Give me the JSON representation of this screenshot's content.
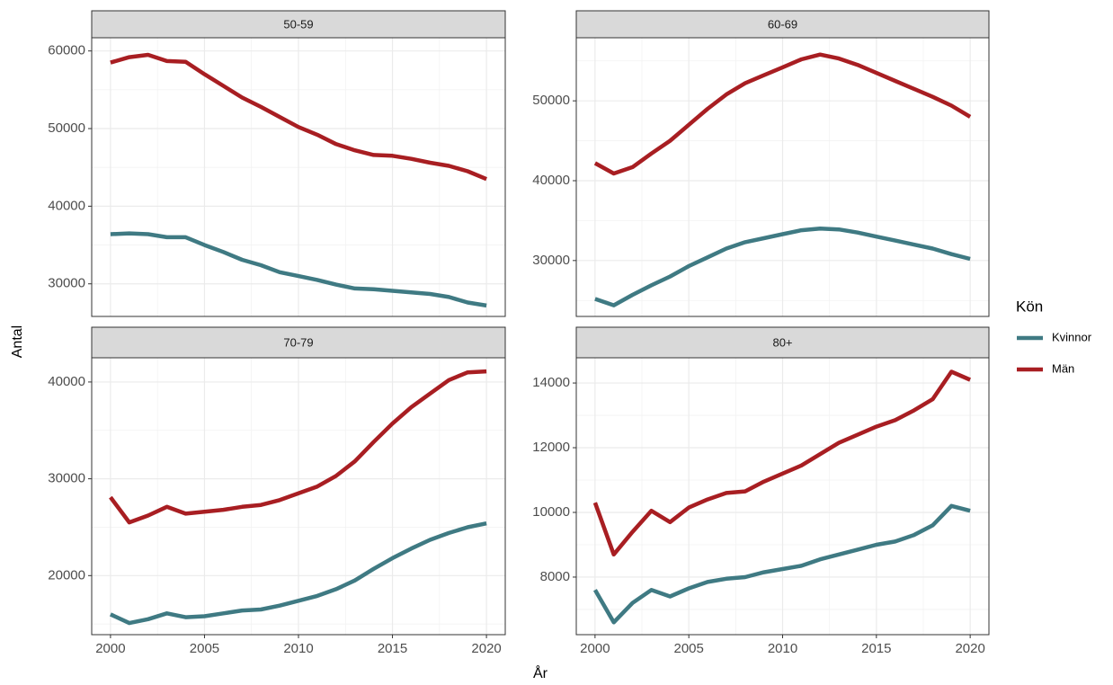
{
  "chart_data": [
    {
      "type": "line",
      "title": "50-59",
      "x": [
        2000,
        2001,
        2002,
        2003,
        2004,
        2005,
        2006,
        2007,
        2008,
        2009,
        2010,
        2011,
        2012,
        2013,
        2014,
        2015,
        2016,
        2017,
        2018,
        2019,
        2020
      ],
      "series": [
        {
          "name": "Kvinnor",
          "color": "#3f7a83",
          "values": [
            36400,
            36500,
            36400,
            36000,
            36000,
            35000,
            34100,
            33100,
            32400,
            31500,
            31000,
            30500,
            29900,
            29400,
            29300,
            29100,
            28900,
            28700,
            28300,
            27600,
            27200
          ]
        },
        {
          "name": "Män",
          "color": "#a81e22",
          "values": [
            58500,
            59200,
            59500,
            58700,
            58600,
            57000,
            55500,
            54000,
            52800,
            51500,
            50200,
            49200,
            48000,
            47200,
            46600,
            46500,
            46100,
            45600,
            45200,
            44500,
            43500
          ]
        }
      ],
      "xlim": [
        1999,
        2021
      ],
      "xticks": [
        2000,
        2005,
        2010,
        2015,
        2020
      ],
      "ylim": [
        25800,
        61700
      ],
      "yticks": [
        30000,
        40000,
        50000,
        60000
      ],
      "grid": true
    },
    {
      "type": "line",
      "title": "60-69",
      "x": [
        2000,
        2001,
        2002,
        2003,
        2004,
        2005,
        2006,
        2007,
        2008,
        2009,
        2010,
        2011,
        2012,
        2013,
        2014,
        2015,
        2016,
        2017,
        2018,
        2019,
        2020
      ],
      "series": [
        {
          "name": "Kvinnor",
          "color": "#3f7a83",
          "values": [
            25200,
            24400,
            25700,
            26900,
            28000,
            29300,
            30400,
            31500,
            32300,
            32800,
            33300,
            33800,
            34000,
            33900,
            33500,
            33000,
            32500,
            32000,
            31500,
            30800,
            30200
          ]
        },
        {
          "name": "Män",
          "color": "#a81e22",
          "values": [
            42200,
            40900,
            41700,
            43400,
            45000,
            47000,
            49000,
            50800,
            52200,
            53200,
            54200,
            55200,
            55800,
            55300,
            54500,
            53500,
            52500,
            51500,
            50500,
            49400,
            48000
          ]
        }
      ],
      "xlim": [
        1999,
        2021
      ],
      "xticks": [
        2000,
        2005,
        2010,
        2015,
        2020
      ],
      "ylim": [
        23000,
        57900
      ],
      "yticks": [
        30000,
        40000,
        50000
      ],
      "grid": true
    },
    {
      "type": "line",
      "title": "70-79",
      "x": [
        2000,
        2001,
        2002,
        2003,
        2004,
        2005,
        2006,
        2007,
        2008,
        2009,
        2010,
        2011,
        2012,
        2013,
        2014,
        2015,
        2016,
        2017,
        2018,
        2019,
        2020
      ],
      "series": [
        {
          "name": "Kvinnor",
          "color": "#3f7a83",
          "values": [
            16000,
            15100,
            15500,
            16100,
            15700,
            15800,
            16100,
            16400,
            16500,
            16900,
            17400,
            17900,
            18600,
            19500,
            20700,
            21800,
            22800,
            23700,
            24400,
            25000,
            25400
          ]
        },
        {
          "name": "Män",
          "color": "#a81e22",
          "values": [
            28100,
            25500,
            26200,
            27100,
            26400,
            26600,
            26800,
            27100,
            27300,
            27800,
            28500,
            29200,
            30300,
            31800,
            33800,
            35700,
            37400,
            38800,
            40200,
            41000,
            41100
          ]
        }
      ],
      "xlim": [
        1999,
        2021
      ],
      "xticks": [
        2000,
        2005,
        2010,
        2015,
        2020
      ],
      "ylim": [
        13900,
        42500
      ],
      "yticks": [
        20000,
        30000,
        40000
      ],
      "grid": true
    },
    {
      "type": "line",
      "title": "80+",
      "x": [
        2000,
        2001,
        2002,
        2003,
        2004,
        2005,
        2006,
        2007,
        2008,
        2009,
        2010,
        2011,
        2012,
        2013,
        2014,
        2015,
        2016,
        2017,
        2018,
        2019,
        2020
      ],
      "series": [
        {
          "name": "Kvinnor",
          "color": "#3f7a83",
          "values": [
            7600,
            6600,
            7200,
            7600,
            7400,
            7650,
            7850,
            7950,
            8000,
            8150,
            8250,
            8350,
            8550,
            8700,
            8850,
            9000,
            9100,
            9300,
            9600,
            10200,
            10050
          ]
        },
        {
          "name": "Män",
          "color": "#a81e22",
          "values": [
            10300,
            8700,
            9400,
            10050,
            9700,
            10150,
            10400,
            10600,
            10650,
            10950,
            11200,
            11450,
            11800,
            12150,
            12400,
            12650,
            12850,
            13150,
            13500,
            14350,
            14100
          ]
        }
      ],
      "xlim": [
        1999,
        2021
      ],
      "xticks": [
        2000,
        2005,
        2010,
        2015,
        2020
      ],
      "ylim": [
        6220,
        14780
      ],
      "yticks": [
        8000,
        10000,
        12000,
        14000
      ],
      "grid": true
    }
  ],
  "y_label": "Antal",
  "x_label": "År",
  "legend_title": "Kön"
}
